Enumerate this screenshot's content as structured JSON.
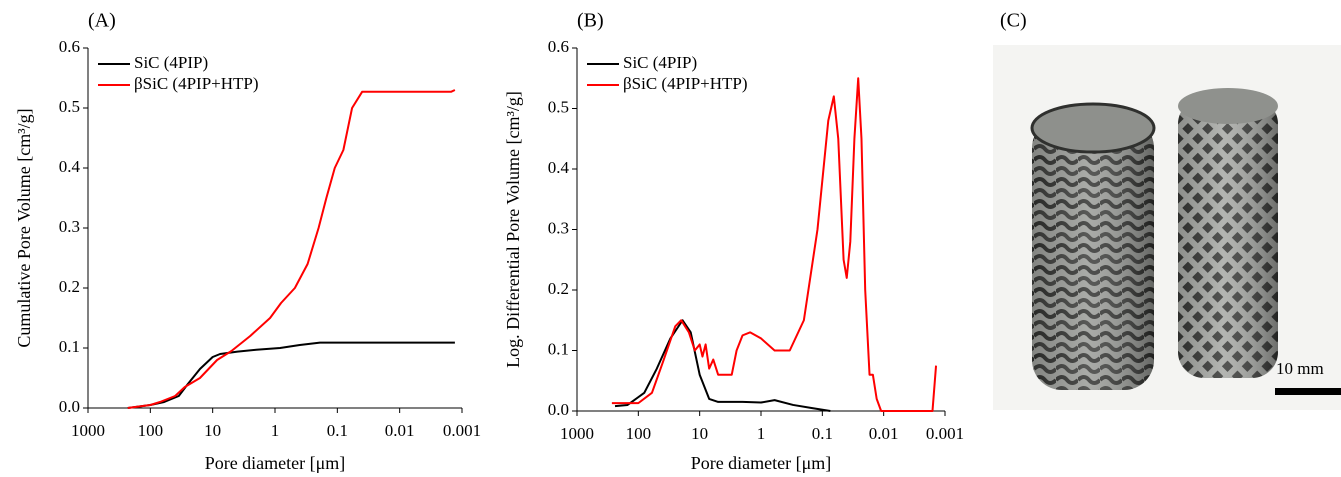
{
  "chart_data": [
    {
      "type": "line",
      "title": "(A)",
      "xlabel": "Pore diameter [μm]",
      "ylabel": "Cumulative Pore Volume [cm³/g]",
      "xscale": "log",
      "xlim": [
        1000,
        0.001
      ],
      "xticks": [
        1000,
        100,
        10,
        1,
        0.1,
        0.01,
        0.001
      ],
      "ylim": [
        0,
        0.6
      ],
      "yticks": [
        {
          "value": 0,
          "label": "0.0"
        },
        0.1,
        0.2,
        0.3,
        0.4,
        0.5,
        0.6
      ],
      "legend": "upper left",
      "series": [
        {
          "name": "SiC (4PIP)",
          "color": "#000000",
          "x": [
            230,
            100,
            60,
            35,
            25,
            16,
            10,
            7.6,
            4,
            2,
            0.83,
            0.4,
            0.19,
            0.01,
            0.0013
          ],
          "values": [
            0,
            0.005,
            0.01,
            0.02,
            0.04,
            0.065,
            0.085,
            0.09,
            0.094,
            0.097,
            0.1,
            0.105,
            0.109,
            0.109,
            0.109
          ]
        },
        {
          "name": "βSiC (4PIP+HTP)",
          "color": "#ff0000",
          "x": [
            230,
            100,
            70,
            40,
            28,
            16,
            8.5,
            5,
            2.5,
            1.2,
            0.8,
            0.48,
            0.3,
            0.2,
            0.15,
            0.11,
            0.08,
            0.058,
            0.04,
            0.01,
            0.0015,
            0.0013
          ],
          "values": [
            0,
            0.005,
            0.01,
            0.02,
            0.035,
            0.05,
            0.08,
            0.095,
            0.12,
            0.15,
            0.175,
            0.2,
            0.24,
            0.3,
            0.35,
            0.4,
            0.43,
            0.5,
            0.527,
            0.527,
            0.527,
            0.53
          ]
        }
      ]
    },
    {
      "type": "line",
      "title": "(B)",
      "xlabel": "Pore diameter [μm]",
      "ylabel": "Log. Differential Pore Volume [cm³/g]",
      "xscale": "log",
      "xlim": [
        1000,
        0.001
      ],
      "xticks": [
        1000,
        100,
        10,
        1,
        0.1,
        0.01,
        0.001
      ],
      "ylim": [
        0,
        0.6
      ],
      "yticks": [
        {
          "value": 0,
          "label": "0.0"
        },
        0.1,
        0.2,
        0.3,
        0.4,
        0.5,
        0.6
      ],
      "legend": "upper left",
      "series": [
        {
          "name": "SiC (4PIP)",
          "color": "#000000",
          "x": [
            240,
            150,
            80,
            50,
            30,
            19,
            14,
            10,
            7,
            5,
            2,
            1,
            0.6,
            0.3,
            0.15,
            0.074
          ],
          "values": [
            0.008,
            0.01,
            0.03,
            0.07,
            0.12,
            0.15,
            0.13,
            0.06,
            0.02,
            0.015,
            0.015,
            0.014,
            0.018,
            0.01,
            0.005,
            0
          ]
        },
        {
          "name": "βSiC (4PIP+HTP)",
          "color": "#ff0000",
          "x": [
            270,
            100,
            60,
            40,
            25,
            20,
            15,
            12,
            10,
            9,
            8,
            7,
            6,
            5,
            4,
            3,
            2.5,
            2,
            1.5,
            1,
            0.6,
            0.34,
            0.2,
            0.12,
            0.08,
            0.065,
            0.055,
            0.045,
            0.04,
            0.035,
            0.03,
            0.026,
            0.023,
            0.02,
            0.017,
            0.015,
            0.013,
            0.011,
            0.0016,
            0.0014
          ],
          "values": [
            0.013,
            0.013,
            0.03,
            0.08,
            0.14,
            0.15,
            0.13,
            0.1,
            0.11,
            0.09,
            0.11,
            0.07,
            0.085,
            0.06,
            0.06,
            0.06,
            0.1,
            0.125,
            0.13,
            0.12,
            0.1,
            0.1,
            0.15,
            0.3,
            0.48,
            0.52,
            0.45,
            0.25,
            0.22,
            0.28,
            0.45,
            0.55,
            0.45,
            0.2,
            0.06,
            0.06,
            0.02,
            0,
            0,
            0.075
          ]
        }
      ]
    }
  ],
  "photo": {
    "label": "(C)",
    "scale_bar": "10 mm"
  }
}
